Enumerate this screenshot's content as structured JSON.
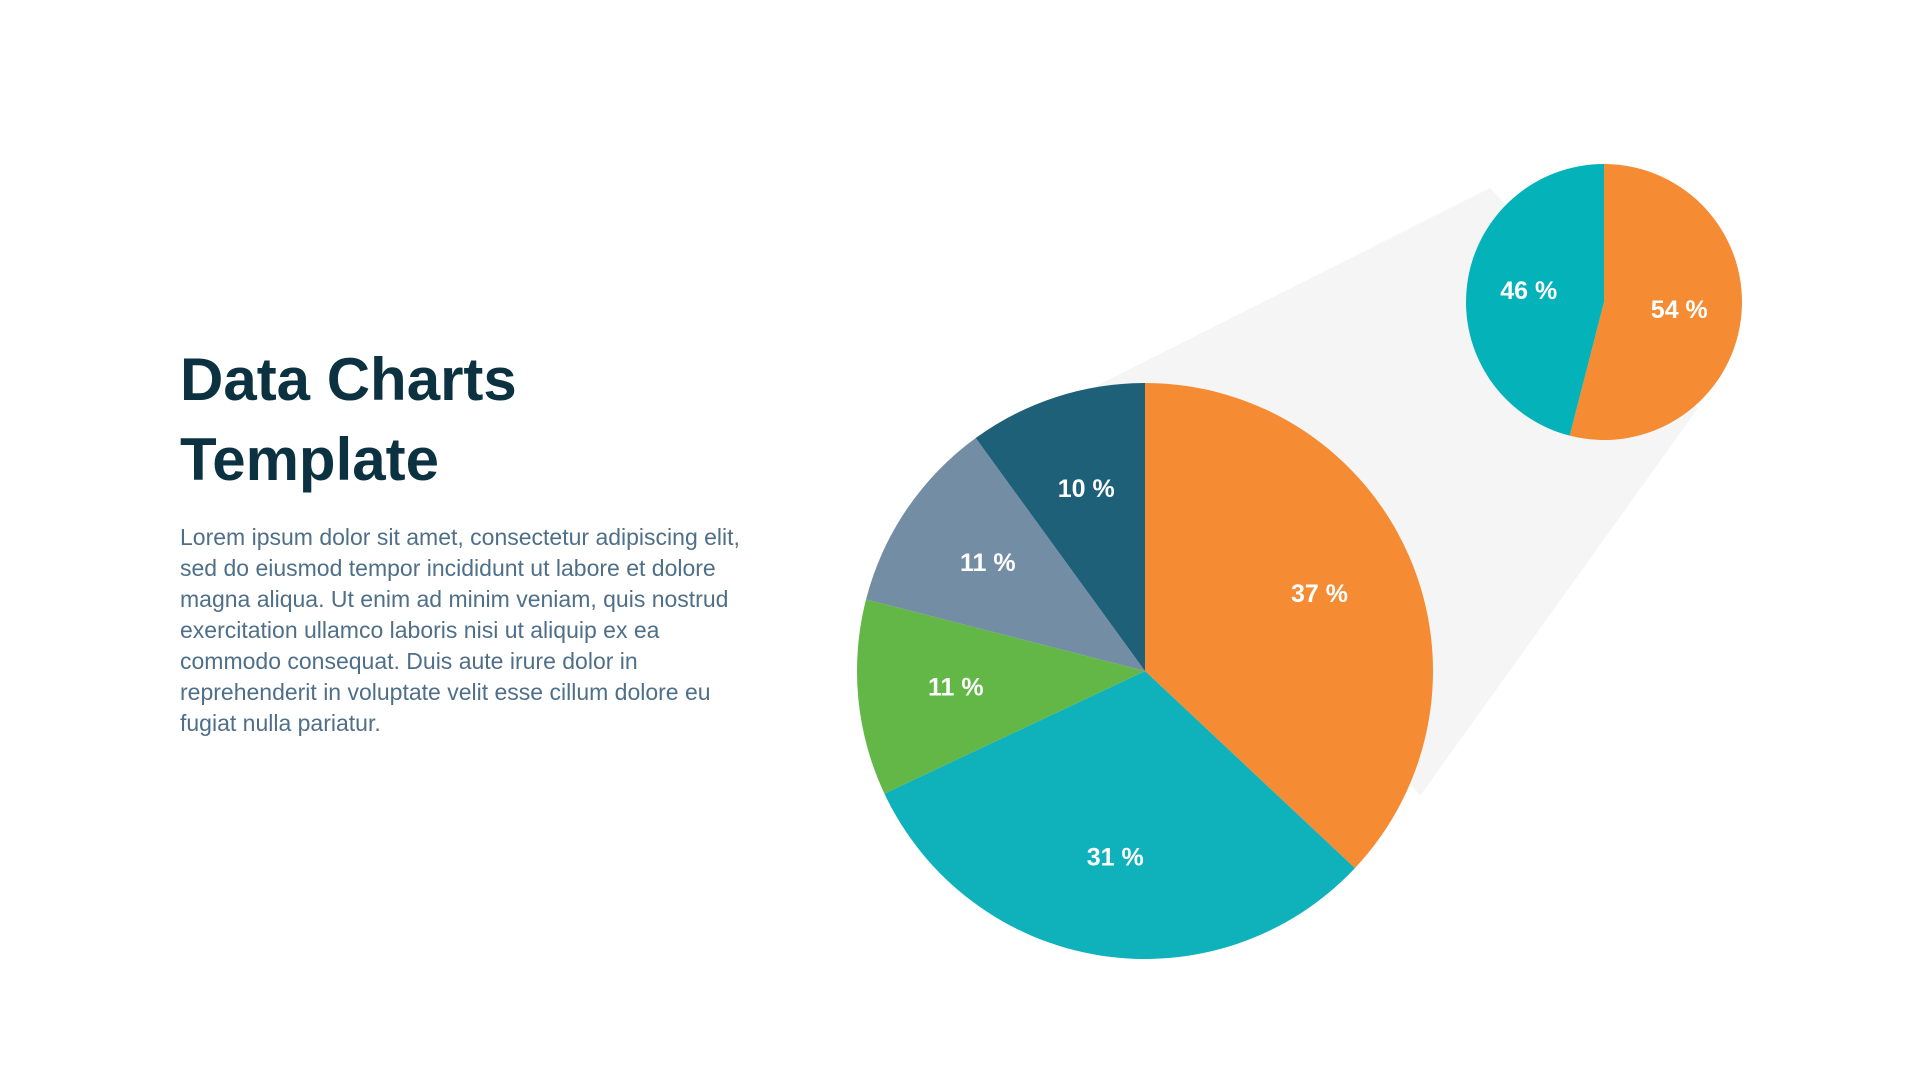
{
  "title_line1": "Data Charts",
  "title_line2": "Template",
  "body": "Lorem ipsum dolor sit amet, consectetur adipiscing elit, sed do eiusmod tempor incididunt ut labore et dolore magna aliqua. Ut enim ad minim veniam, quis nostrud exercitation ullamco laboris nisi ut aliquip ex ea commodo consequat. Duis aute irure dolor in reprehenderit in voluptate velit esse cillum dolore eu fugiat nulla pariatur.",
  "chart_data": [
    {
      "type": "pie",
      "values": [
        37,
        31,
        11,
        11,
        10
      ],
      "labels": [
        "37 %",
        "31 %",
        "11 %",
        "11 %",
        "10 %"
      ],
      "colors": [
        "#F58B33",
        "#0FB1BA",
        "#63B746",
        "#738DA5",
        "#1D6078"
      ],
      "start": "top",
      "direction": "clockwise"
    },
    {
      "type": "pie",
      "values": [
        54,
        46
      ],
      "labels": [
        "54 %",
        "46 %"
      ],
      "colors": [
        "#F58B33",
        "#04B2BA"
      ],
      "start": "top",
      "direction": "clockwise"
    }
  ]
}
